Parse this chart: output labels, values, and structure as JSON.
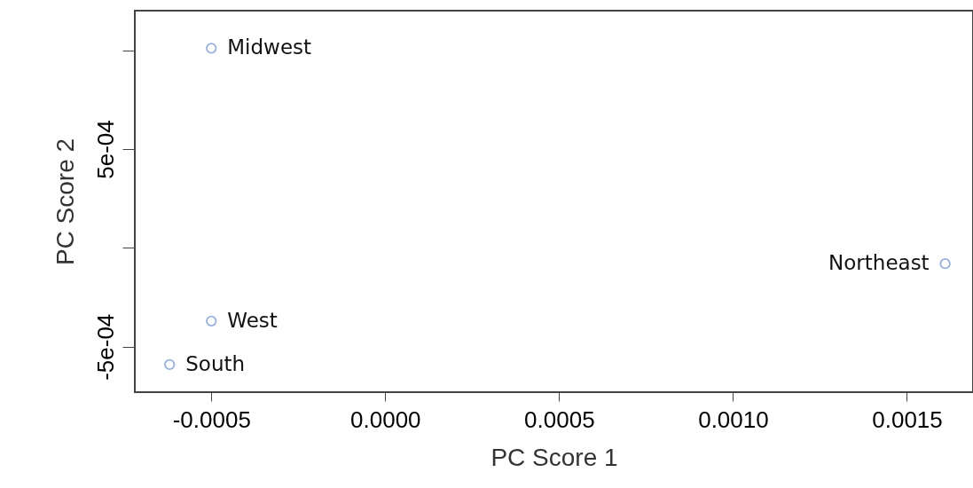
{
  "chart_data": {
    "type": "scatter",
    "xlabel": "PC Score 1",
    "ylabel": "PC Score 2",
    "x": [
      -0.0005,
      -0.0005,
      -0.00062,
      0.00161
    ],
    "series": [
      {
        "color": "#6a8fd6",
        "values": [
          0.00101,
          -0.00037,
          -0.00059,
          -8e-05
        ]
      }
    ],
    "marker": "circle",
    "annotations": [
      {
        "text": "Midwest",
        "x": -0.0005,
        "y": 0.00101
      },
      {
        "text": "West",
        "x": -0.0005,
        "y": -0.00037
      },
      {
        "text": "South",
        "x": -0.00062,
        "y": -0.00059
      },
      {
        "text": "Northeast",
        "x": 0.00161,
        "y": -8e-05
      }
    ],
    "xlim": [
      -0.00072,
      0.00169
    ],
    "ylim": [
      -0.00073,
      0.0012
    ],
    "xticks": [
      {
        "value": -0.0005,
        "label": "-0.0005"
      },
      {
        "value": 0,
        "label": "0.0000"
      },
      {
        "value": 0.0005,
        "label": "0.0005"
      },
      {
        "value": 0.001,
        "label": "0.0010"
      },
      {
        "value": 0.0015,
        "label": "0.0015"
      }
    ],
    "yticks": [
      {
        "value": -0.0005,
        "label": "-5e-04"
      },
      {
        "value": 0,
        "label": null
      },
      {
        "value": 0.0005,
        "label": "5e-04"
      },
      {
        "value": 0.001,
        "label": null
      }
    ],
    "grid": false
  }
}
